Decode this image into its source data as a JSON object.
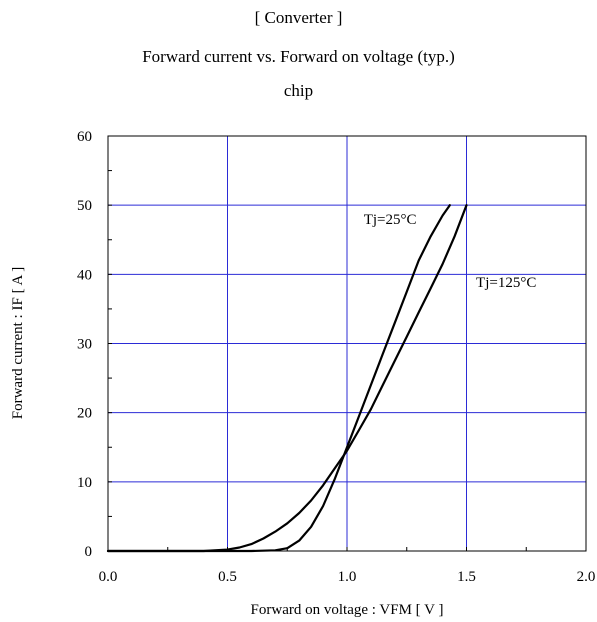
{
  "chart_data": {
    "type": "line",
    "title": "[ Converter ]",
    "subtitle": "Forward current  vs.  Forward on voltage  (typ.)",
    "subtitle2": "chip",
    "xlabel": "Forward on voltage  :  VFM [ V ]",
    "ylabel": "Forward current  :  IF  [ A ]",
    "xlim": [
      0,
      2
    ],
    "ylim": [
      0,
      60
    ],
    "xticks": [
      0.0,
      0.5,
      1.0,
      1.5,
      2.0
    ],
    "xtick_labels": [
      "0.0",
      "0.5",
      "1.0",
      "1.5",
      "2.0"
    ],
    "yticks": [
      0,
      10,
      20,
      30,
      40,
      50,
      60
    ],
    "ytick_labels": [
      "0",
      "10",
      "20",
      "30",
      "40",
      "50",
      "60"
    ],
    "grid": true,
    "grid_color": "#2b2bd6",
    "line_color": "#000000",
    "series": [
      {
        "name": "Tj=25°C",
        "x": [
          0.0,
          0.5,
          0.6,
          0.7,
          0.75,
          0.8,
          0.85,
          0.9,
          0.95,
          1.0,
          1.05,
          1.1,
          1.15,
          1.2,
          1.25,
          1.3,
          1.35,
          1.4,
          1.43
        ],
        "y": [
          0,
          0,
          0,
          0.1,
          0.4,
          1.5,
          3.5,
          6.5,
          10.5,
          15,
          19.5,
          24,
          28.5,
          33,
          37.5,
          42,
          45.5,
          48.5,
          50
        ]
      },
      {
        "name": "Tj=125°C",
        "x": [
          0.0,
          0.4,
          0.5,
          0.55,
          0.6,
          0.65,
          0.7,
          0.75,
          0.8,
          0.85,
          0.9,
          0.95,
          1.0,
          1.05,
          1.1,
          1.15,
          1.2,
          1.25,
          1.3,
          1.35,
          1.4,
          1.45,
          1.5
        ],
        "y": [
          0,
          0,
          0.2,
          0.5,
          1,
          1.8,
          2.8,
          4,
          5.5,
          7.3,
          9.5,
          12,
          14.5,
          17.5,
          20.5,
          24,
          27.5,
          31,
          34.5,
          38,
          41.5,
          45.5,
          50
        ]
      }
    ],
    "annotations": [
      {
        "text": "Tj=25°C",
        "x": 1.07,
        "y": 47.3
      },
      {
        "text": "Tj=125°C",
        "x": 1.54,
        "y": 38.2
      }
    ]
  }
}
